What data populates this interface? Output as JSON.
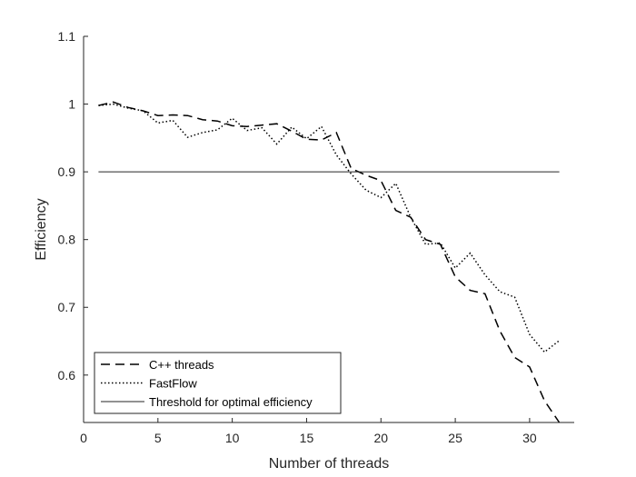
{
  "chart_data": {
    "type": "line",
    "title": "",
    "xlabel": "Number of threads",
    "ylabel": "Efficiency",
    "xlim": [
      0,
      33
    ],
    "ylim": [
      0.53,
      1.1
    ],
    "xticks": [
      0,
      5,
      10,
      15,
      20,
      25,
      30
    ],
    "yticks": [
      0.6,
      0.7,
      0.8,
      0.9,
      1,
      1.1
    ],
    "xtick_labels": [
      "0",
      "5",
      "10",
      "15",
      "20",
      "25",
      "30"
    ],
    "ytick_labels": [
      "0.6",
      "0.7",
      "0.8",
      "0.9",
      "1",
      "1.1"
    ],
    "grid": false,
    "legend_position": "bottom-left",
    "series": [
      {
        "name": "C++ threads",
        "style": "dashed",
        "color": "#000000",
        "x": [
          1,
          2,
          3,
          4,
          5,
          6,
          7,
          8,
          9,
          10,
          11,
          12,
          13,
          14,
          15,
          16,
          17,
          18,
          19,
          20,
          21,
          22,
          23,
          24,
          25,
          26,
          27,
          28,
          29,
          30,
          31,
          32
        ],
        "y": [
          0.998,
          1.003,
          0.995,
          0.99,
          0.983,
          0.984,
          0.983,
          0.977,
          0.975,
          0.968,
          0.967,
          0.969,
          0.971,
          0.96,
          0.948,
          0.947,
          0.958,
          0.905,
          0.895,
          0.887,
          0.843,
          0.833,
          0.8,
          0.793,
          0.745,
          0.725,
          0.72,
          0.665,
          0.626,
          0.612,
          0.562,
          0.53
        ]
      },
      {
        "name": "FastFlow",
        "style": "dotted",
        "color": "#000000",
        "x": [
          1,
          2,
          3,
          4,
          5,
          6,
          7,
          8,
          9,
          10,
          11,
          12,
          13,
          14,
          15,
          16,
          17,
          18,
          19,
          20,
          21,
          22,
          23,
          24,
          25,
          26,
          27,
          28,
          29,
          30,
          31,
          32
        ],
        "y": [
          0.998,
          1.0,
          0.994,
          0.99,
          0.972,
          0.976,
          0.951,
          0.958,
          0.962,
          0.979,
          0.961,
          0.965,
          0.941,
          0.966,
          0.949,
          0.967,
          0.925,
          0.897,
          0.873,
          0.862,
          0.883,
          0.833,
          0.793,
          0.795,
          0.758,
          0.78,
          0.748,
          0.723,
          0.715,
          0.66,
          0.634,
          0.651
        ]
      },
      {
        "name": "Threshold for optimal efficiency",
        "style": "solid",
        "color": "#262626",
        "x": [
          1,
          32
        ],
        "y": [
          0.9,
          0.9
        ]
      }
    ]
  }
}
